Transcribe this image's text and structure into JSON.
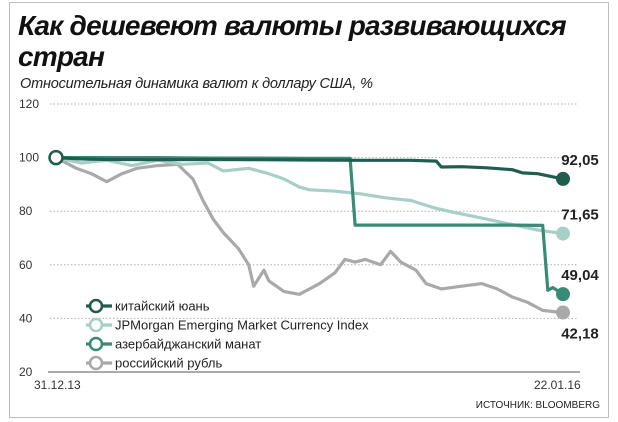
{
  "title": "Как дешевеют валюты развивающихся стран",
  "subtitle": "Относительная динамика валют к доллару США, %",
  "source": "ИСТОЧНИК: BLOOMBERG",
  "colors": {
    "yuan": "#1f5e4f",
    "em_index": "#a8cfc7",
    "manat": "#3a8a78",
    "ruble": "#a9a9a9",
    "grid": "#b0b0b0",
    "axis": "#555555"
  },
  "chart_data": {
    "type": "line",
    "ylim": [
      20,
      120
    ],
    "yticks": [
      20,
      40,
      60,
      80,
      100,
      120
    ],
    "x_tick_labels": [
      "31.12.13",
      "22.01.16"
    ],
    "grid": true,
    "legend_position": "bottom-left",
    "series": [
      {
        "name": "китайский юань",
        "color_key": "yuan",
        "end_label": "92,05",
        "points": [
          [
            0,
            100
          ],
          [
            0.05,
            99.5
          ],
          [
            0.1,
            99.3
          ],
          [
            0.2,
            99.2
          ],
          [
            0.3,
            99.3
          ],
          [
            0.4,
            99.2
          ],
          [
            0.5,
            99.1
          ],
          [
            0.6,
            99.0
          ],
          [
            0.7,
            99.0
          ],
          [
            0.75,
            98.7
          ],
          [
            0.76,
            96.5
          ],
          [
            0.8,
            96.6
          ],
          [
            0.85,
            96.2
          ],
          [
            0.9,
            95.5
          ],
          [
            0.92,
            94.3
          ],
          [
            0.95,
            94.0
          ],
          [
            1.0,
            92.05
          ]
        ]
      },
      {
        "name": "JPMorgan Emerging Market Currency Index",
        "color_key": "em_index",
        "end_label": "71,65",
        "points": [
          [
            0,
            100
          ],
          [
            0.05,
            98
          ],
          [
            0.1,
            99
          ],
          [
            0.15,
            97
          ],
          [
            0.2,
            99
          ],
          [
            0.25,
            97.5
          ],
          [
            0.3,
            98
          ],
          [
            0.33,
            95
          ],
          [
            0.38,
            96
          ],
          [
            0.42,
            94
          ],
          [
            0.45,
            92
          ],
          [
            0.48,
            89
          ],
          [
            0.5,
            88
          ],
          [
            0.55,
            87.5
          ],
          [
            0.6,
            86.5
          ],
          [
            0.65,
            85
          ],
          [
            0.7,
            84
          ],
          [
            0.75,
            81
          ],
          [
            0.8,
            79
          ],
          [
            0.85,
            77
          ],
          [
            0.9,
            75
          ],
          [
            0.95,
            73
          ],
          [
            1.0,
            71.65
          ]
        ]
      },
      {
        "name": "азербайджанский манат",
        "color_key": "manat",
        "end_label": "49,04",
        "points": [
          [
            0,
            100
          ],
          [
            0.1,
            100
          ],
          [
            0.2,
            100
          ],
          [
            0.3,
            99.8
          ],
          [
            0.4,
            99.8
          ],
          [
            0.5,
            99.7
          ],
          [
            0.58,
            99.7
          ],
          [
            0.59,
            74.8
          ],
          [
            0.7,
            74.8
          ],
          [
            0.8,
            74.8
          ],
          [
            0.9,
            74.8
          ],
          [
            0.96,
            74.7
          ],
          [
            0.97,
            50.5
          ],
          [
            0.98,
            51.5
          ],
          [
            1.0,
            49.04
          ]
        ]
      },
      {
        "name": "российский рубль",
        "color_key": "ruble",
        "end_label": "42,18",
        "points": [
          [
            0,
            100
          ],
          [
            0.04,
            96
          ],
          [
            0.07,
            94
          ],
          [
            0.1,
            91
          ],
          [
            0.13,
            94
          ],
          [
            0.16,
            96
          ],
          [
            0.2,
            97
          ],
          [
            0.24,
            97.5
          ],
          [
            0.27,
            92
          ],
          [
            0.29,
            84
          ],
          [
            0.31,
            77
          ],
          [
            0.33,
            72
          ],
          [
            0.36,
            66
          ],
          [
            0.38,
            60
          ],
          [
            0.39,
            52
          ],
          [
            0.41,
            58
          ],
          [
            0.42,
            54
          ],
          [
            0.45,
            50
          ],
          [
            0.48,
            49
          ],
          [
            0.52,
            53
          ],
          [
            0.55,
            57
          ],
          [
            0.57,
            62
          ],
          [
            0.59,
            61
          ],
          [
            0.61,
            62
          ],
          [
            0.64,
            60
          ],
          [
            0.66,
            65
          ],
          [
            0.68,
            61
          ],
          [
            0.71,
            58
          ],
          [
            0.73,
            53
          ],
          [
            0.76,
            51
          ],
          [
            0.8,
            52
          ],
          [
            0.84,
            53
          ],
          [
            0.87,
            51
          ],
          [
            0.9,
            48
          ],
          [
            0.93,
            46
          ],
          [
            0.96,
            43
          ],
          [
            1.0,
            42.18
          ]
        ]
      }
    ]
  }
}
